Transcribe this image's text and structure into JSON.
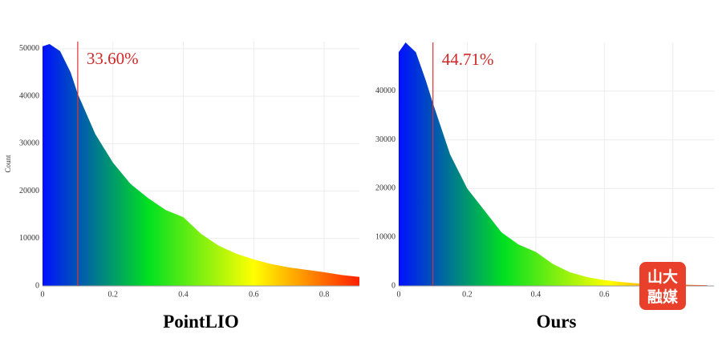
{
  "chart_data": [
    {
      "type": "area",
      "title": "PointLIO",
      "y_label": "Count",
      "annotation": "33.60%",
      "threshold_x": 0.1,
      "x": [
        0,
        0.02,
        0.05,
        0.08,
        0.1,
        0.15,
        0.2,
        0.25,
        0.3,
        0.35,
        0.4,
        0.45,
        0.5,
        0.55,
        0.6,
        0.65,
        0.7,
        0.75,
        0.8,
        0.85,
        0.9
      ],
      "values": [
        50500,
        51000,
        49500,
        45000,
        40500,
        32000,
        26000,
        21500,
        18500,
        16000,
        14500,
        11000,
        8500,
        6800,
        5600,
        4600,
        3900,
        3400,
        2900,
        2300,
        1900
      ],
      "xlim": [
        0,
        0.9
      ],
      "ylim": [
        0,
        51500
      ],
      "xticks": [
        0,
        0.2,
        0.4,
        0.6,
        0.8
      ],
      "yticks": [
        0,
        10000,
        20000,
        30000,
        40000,
        50000
      ],
      "grid": true,
      "gradient": [
        "#0010ff",
        "#00e020",
        "#ffff00",
        "#ff2000"
      ],
      "line_color": "#e03030"
    },
    {
      "type": "area",
      "title": "Ours",
      "annotation": "44.71%",
      "threshold_x": 0.1,
      "x": [
        0,
        0.02,
        0.05,
        0.08,
        0.1,
        0.15,
        0.2,
        0.25,
        0.3,
        0.35,
        0.4,
        0.45,
        0.5,
        0.55,
        0.6,
        0.65,
        0.7,
        0.75,
        0.8,
        0.85,
        0.9
      ],
      "values": [
        48000,
        50000,
        48000,
        42000,
        37500,
        27000,
        20000,
        15500,
        11000,
        8500,
        7000,
        4500,
        2800,
        1800,
        1200,
        800,
        500,
        400,
        300,
        200,
        150
      ],
      "xlim": [
        0,
        0.92
      ],
      "ylim": [
        0,
        50000
      ],
      "xticks": [
        0,
        0.2,
        0.4,
        0.6,
        0.8
      ],
      "yticks": [
        0,
        10000,
        20000,
        30000,
        40000
      ],
      "grid": true,
      "gradient": [
        "#0010ff",
        "#00e020",
        "#ffff00",
        "#ff2000"
      ],
      "line_color": "#e03030"
    }
  ],
  "watermark": {
    "line1": "山大",
    "line2": "融媒"
  }
}
